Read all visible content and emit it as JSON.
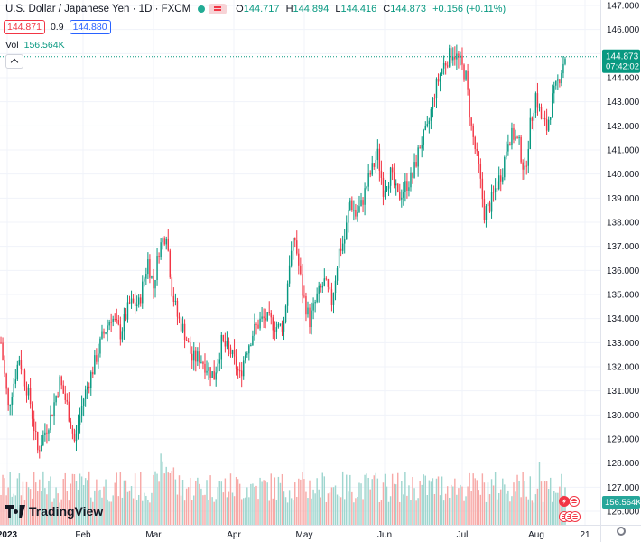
{
  "header": {
    "title": "U.S. Dollar / Japanese Yen · 1D · FXCM",
    "ohlc": [
      {
        "key": "O",
        "value": "144.717"
      },
      {
        "key": "H",
        "value": "144.894"
      },
      {
        "key": "L",
        "value": "144.416"
      },
      {
        "key": "C",
        "value": "144.873"
      }
    ],
    "change": "+0.156 (+0.11%)",
    "sell_price": "144.871",
    "spread": "0.9",
    "buy_price": "144.880",
    "vol_label": "Vol",
    "vol_value": "156.564K"
  },
  "price_label": "144.873",
  "countdown_label": "07:42:02",
  "volume_label": "156.564K",
  "brand": "TradingView",
  "colors": {
    "up": "#089981",
    "down": "#f23645",
    "up_vol": "#9fd6cf",
    "down_vol": "#f7a9a7",
    "grid": "#f0f3fa"
  },
  "icons": [
    "market-open-dot-icon",
    "market-status-icon",
    "collapse-chevron-icon",
    "tradingview-logo-icon",
    "event-flash-icon",
    "us-flag-icon",
    "settings-gear-icon"
  ],
  "chart_data": {
    "type": "candlestick",
    "symbol": "USDJPY",
    "timeframe": "1D",
    "x_ticks": [
      "2023",
      "Feb",
      "Mar",
      "Apr",
      "May",
      "Jun",
      "Jul",
      "Aug",
      "21"
    ],
    "y_ticks": [
      126,
      127,
      128,
      129,
      130,
      131,
      132,
      133,
      134,
      135,
      136,
      137,
      138,
      139,
      140,
      141,
      142,
      143,
      144,
      145,
      146,
      147
    ],
    "y_range": [
      125.6,
      147.3
    ],
    "last_price": 144.873,
    "anchors": [
      [
        0,
        133.0
      ],
      [
        4,
        130.3
      ],
      [
        10,
        132.4
      ],
      [
        16,
        130.5
      ],
      [
        20,
        128.5
      ],
      [
        27,
        129.9
      ],
      [
        32,
        131.4
      ],
      [
        36,
        130.4
      ],
      [
        40,
        128.9
      ],
      [
        45,
        130.7
      ],
      [
        50,
        131.9
      ],
      [
        55,
        133.2
      ],
      [
        60,
        134.1
      ],
      [
        65,
        133.4
      ],
      [
        70,
        134.6
      ],
      [
        75,
        134.6
      ],
      [
        80,
        136.4
      ],
      [
        83,
        135.3
      ],
      [
        86,
        136.9
      ],
      [
        90,
        137.6
      ],
      [
        93,
        135.2
      ],
      [
        96,
        134.1
      ],
      [
        100,
        133.4
      ],
      [
        104,
        132.3
      ],
      [
        108,
        132.4
      ],
      [
        112,
        132.0
      ],
      [
        116,
        131.6
      ],
      [
        120,
        133.0
      ],
      [
        125,
        132.6
      ],
      [
        130,
        131.6
      ],
      [
        133,
        132.6
      ],
      [
        137,
        133.4
      ],
      [
        141,
        133.9
      ],
      [
        144,
        134.0
      ],
      [
        148,
        133.8
      ],
      [
        151,
        133.6
      ],
      [
        154,
        133.8
      ],
      [
        157,
        136.4
      ],
      [
        160,
        137.3
      ],
      [
        164,
        135.1
      ],
      [
        168,
        133.9
      ],
      [
        172,
        134.9
      ],
      [
        176,
        135.5
      ],
      [
        180,
        134.7
      ],
      [
        184,
        136.8
      ],
      [
        187,
        137.3
      ],
      [
        190,
        138.9
      ],
      [
        193,
        138.3
      ],
      [
        196,
        138.7
      ],
      [
        200,
        139.8
      ],
      [
        205,
        140.8
      ],
      [
        208,
        139.4
      ],
      [
        212,
        140.0
      ],
      [
        216,
        139.0
      ],
      [
        220,
        139.5
      ],
      [
        224,
        139.9
      ],
      [
        228,
        141.2
      ],
      [
        232,
        141.8
      ],
      [
        236,
        143.4
      ],
      [
        240,
        144.4
      ],
      [
        243,
        144.8
      ],
      [
        246,
        145.1
      ],
      [
        250,
        144.6
      ],
      [
        253,
        144.0
      ],
      [
        256,
        141.9
      ],
      [
        260,
        140.2
      ],
      [
        263,
        138.4
      ],
      [
        266,
        138.7
      ],
      [
        270,
        139.6
      ],
      [
        273,
        140.2
      ],
      [
        276,
        141.5
      ],
      [
        279,
        141.6
      ],
      [
        282,
        141.2
      ],
      [
        285,
        140.0
      ],
      [
        288,
        142.0
      ],
      [
        291,
        143.3
      ],
      [
        294,
        142.3
      ],
      [
        297,
        141.9
      ],
      [
        300,
        143.1
      ],
      [
        303,
        143.8
      ],
      [
        307,
        144.9
      ]
    ],
    "volume_max": 200000
  }
}
